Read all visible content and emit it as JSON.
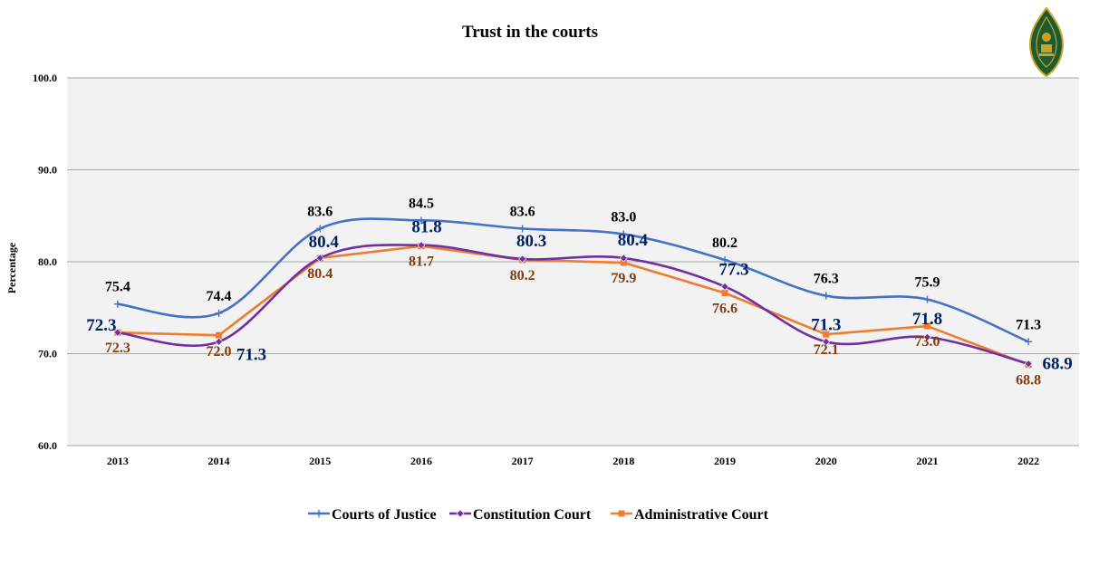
{
  "chart_data": {
    "type": "line",
    "title": "Trust in the courts",
    "ylabel": "Percentage",
    "xlabel": "",
    "ylim": [
      60,
      100
    ],
    "yticks": [
      "60.0",
      "70.0",
      "80.0",
      "90.0",
      "100.0"
    ],
    "ytick_values": [
      60,
      70,
      80,
      90,
      100
    ],
    "categories": [
      "2013",
      "2014",
      "2015",
      "2016",
      "2017",
      "2018",
      "2019",
      "2020",
      "2021",
      "2022"
    ],
    "grid": true,
    "legend_position": "bottom",
    "series": [
      {
        "name": "Courts of Justice",
        "color": "#4472C4",
        "label_color": "#000000",
        "marker": "plus",
        "values": [
          75.4,
          74.4,
          83.6,
          84.5,
          83.6,
          83.0,
          80.2,
          76.3,
          75.9,
          71.3
        ],
        "labels": [
          "75.4",
          "74.4",
          "83.6",
          "84.5",
          "83.6",
          "83.0",
          "80.2",
          "76.3",
          "75.9",
          "71.3"
        ]
      },
      {
        "name": "Constitution Court",
        "color": "#7030A0",
        "label_color": "#002060",
        "marker": "diamond",
        "values": [
          72.3,
          71.3,
          80.4,
          81.8,
          80.3,
          80.4,
          77.3,
          71.3,
          71.8,
          68.9
        ],
        "labels": [
          "72.3",
          "71.3",
          "80.4",
          "81.8",
          "80.3",
          "80.4",
          "77.3",
          "71.3",
          "71.8",
          "68.9"
        ]
      },
      {
        "name": "Administrative Court",
        "color": "#ED7D31",
        "label_color": "#843C0C",
        "marker": "square",
        "values": [
          72.3,
          72.0,
          80.4,
          81.7,
          80.2,
          79.9,
          76.6,
          72.1,
          73.0,
          68.8
        ],
        "labels": [
          "72.3",
          "72.0",
          "80.4",
          "81.7",
          "80.2",
          "79.9",
          "76.6",
          "72.1",
          "73.0",
          "68.8"
        ]
      }
    ]
  },
  "colors": {
    "plot_background": "#F2F2F2",
    "gridline": "#A6A6A6",
    "logo_green": "#1E5A32",
    "logo_gold": "#C9A227"
  },
  "logo": {
    "icon": "court-emblem-icon"
  }
}
